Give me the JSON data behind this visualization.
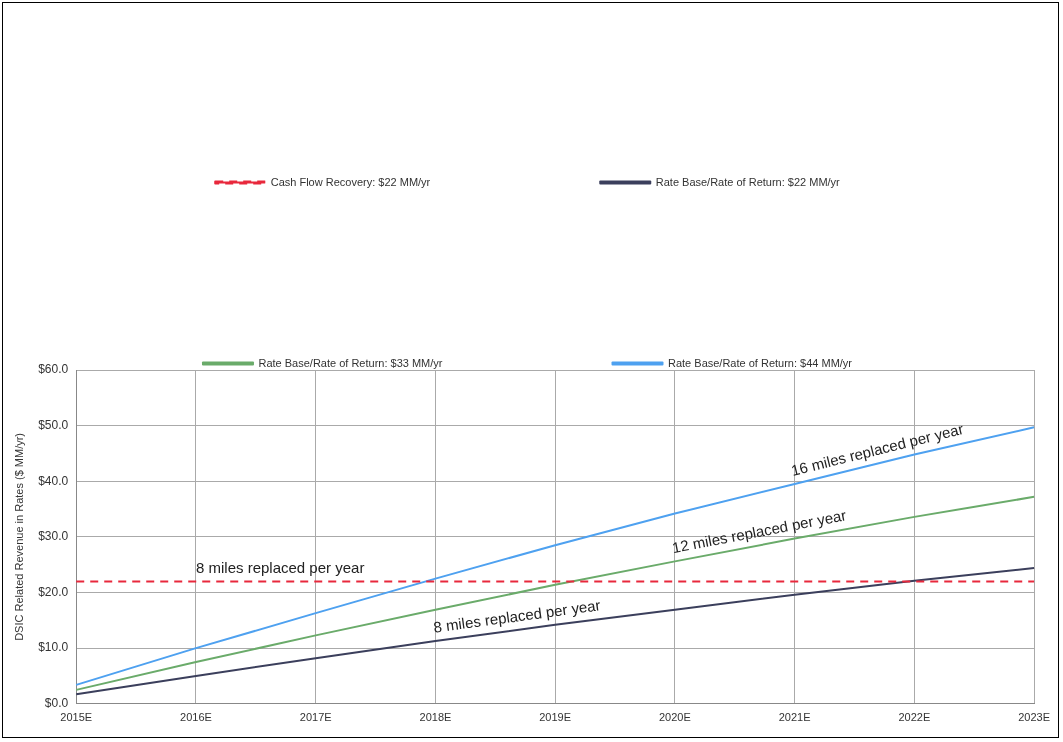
{
  "chart_data": {
    "type": "line",
    "ylabel": "DSIC Related Revenue in Rates ($ MM/yr)",
    "categories": [
      "2015E",
      "2016E",
      "2017E",
      "2018E",
      "2019E",
      "2020E",
      "2021E",
      "2022E",
      "2023E"
    ],
    "series": [
      {
        "name": "Cash Flow Recovery: $22 MM/yr",
        "color": "#e8283c",
        "line_style": "dashed",
        "values": [
          22,
          22,
          22,
          22,
          22,
          22,
          22,
          22,
          22
        ]
      },
      {
        "name": "Rate Base/Rate of Return: $22 MM/yr",
        "color": "#3b3f5c",
        "values": [
          1.7,
          5.0,
          8.2,
          11.3,
          14.2,
          16.9,
          19.6,
          22.1,
          24.4
        ]
      },
      {
        "name": "Rate Base/Rate of Return: $33 MM/yr",
        "color": "#6aab6a",
        "values": [
          2.5,
          7.5,
          12.3,
          16.9,
          21.4,
          25.6,
          29.7,
          33.6,
          37.2
        ]
      },
      {
        "name": "Rate Base/Rate of Return: $44 MM/yr",
        "color": "#4ea1f0",
        "values": [
          3.4,
          10.0,
          16.3,
          22.5,
          28.5,
          34.2,
          39.5,
          44.8,
          49.7
        ]
      }
    ],
    "ylim": [
      0,
      60
    ],
    "yticks": [
      {
        "value": 0,
        "label": "$0.0"
      },
      {
        "value": 10,
        "label": "$10.0"
      },
      {
        "value": 20,
        "label": "$20.0"
      },
      {
        "value": 30,
        "label": "$30.0"
      },
      {
        "value": 40,
        "label": "$40.0"
      },
      {
        "value": 50,
        "label": "$50.0"
      },
      {
        "value": 60,
        "label": "$60.0"
      }
    ],
    "annotations": [
      {
        "text": "8 miles replaced per year",
        "x": "2016E",
        "y": 22
      },
      {
        "text": "8 miles replaced per year",
        "x": "2018E",
        "y": 11.3
      },
      {
        "text": "12 miles replaced per year",
        "x": "2020E",
        "y": 25.6
      },
      {
        "text": "16 miles replaced per year",
        "x": "2021E",
        "y": 39.5
      }
    ],
    "grid": true,
    "legend": "top",
    "marker": "none",
    "line_style": "solid"
  }
}
